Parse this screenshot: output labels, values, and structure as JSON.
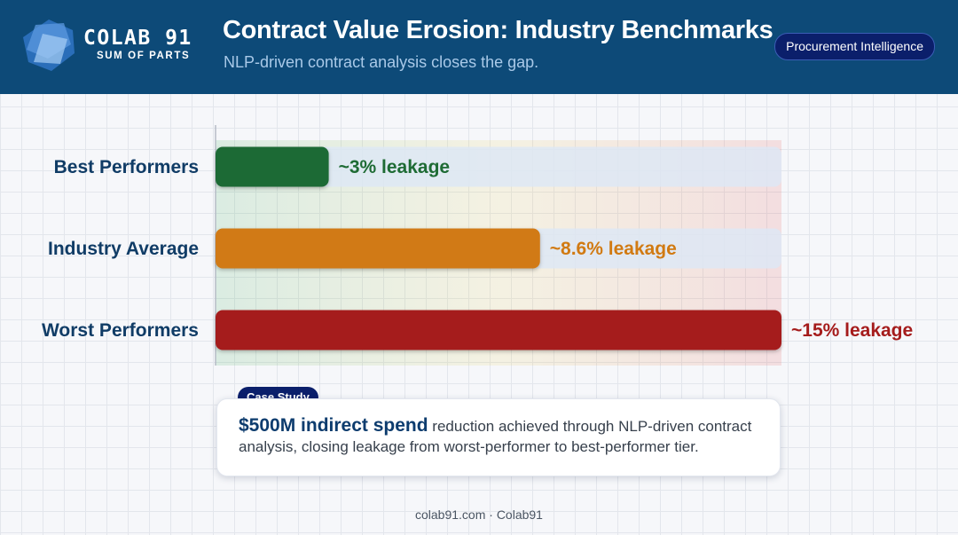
{
  "header": {
    "logo_name": "COLAB 91",
    "logo_tagline": "SUM OF PARTS",
    "title": "Contract Value Erosion: Industry Benchmarks",
    "subtitle": "NLP-driven contract analysis closes the gap.",
    "badge": "Procurement Intelligence"
  },
  "chart_data": {
    "type": "bar",
    "orientation": "horizontal",
    "categories": [
      "Best Performers",
      "Industry Average",
      "Worst Performers"
    ],
    "values": [
      3,
      8.6,
      15
    ],
    "data_labels": [
      "~3% leakage",
      "~8.6% leakage",
      "~15% leakage"
    ],
    "colors": [
      "#1e6b34",
      "#d17a12",
      "#a51c1c"
    ],
    "label_colors": [
      "#1e6b34",
      "#d17a12",
      "#a51c1c"
    ],
    "xlim": [
      0,
      15
    ],
    "title": "",
    "xlabel": "",
    "ylabel": "",
    "grid": false,
    "legend": "none"
  },
  "case_study": {
    "badge": "Case Study",
    "highlight": "$500M indirect spend",
    "text": " reduction achieved through NLP-driven contract analysis, closing leakage from worst-performer to best-performer tier."
  },
  "footer": {
    "text": "colab91.com · Colab91"
  }
}
